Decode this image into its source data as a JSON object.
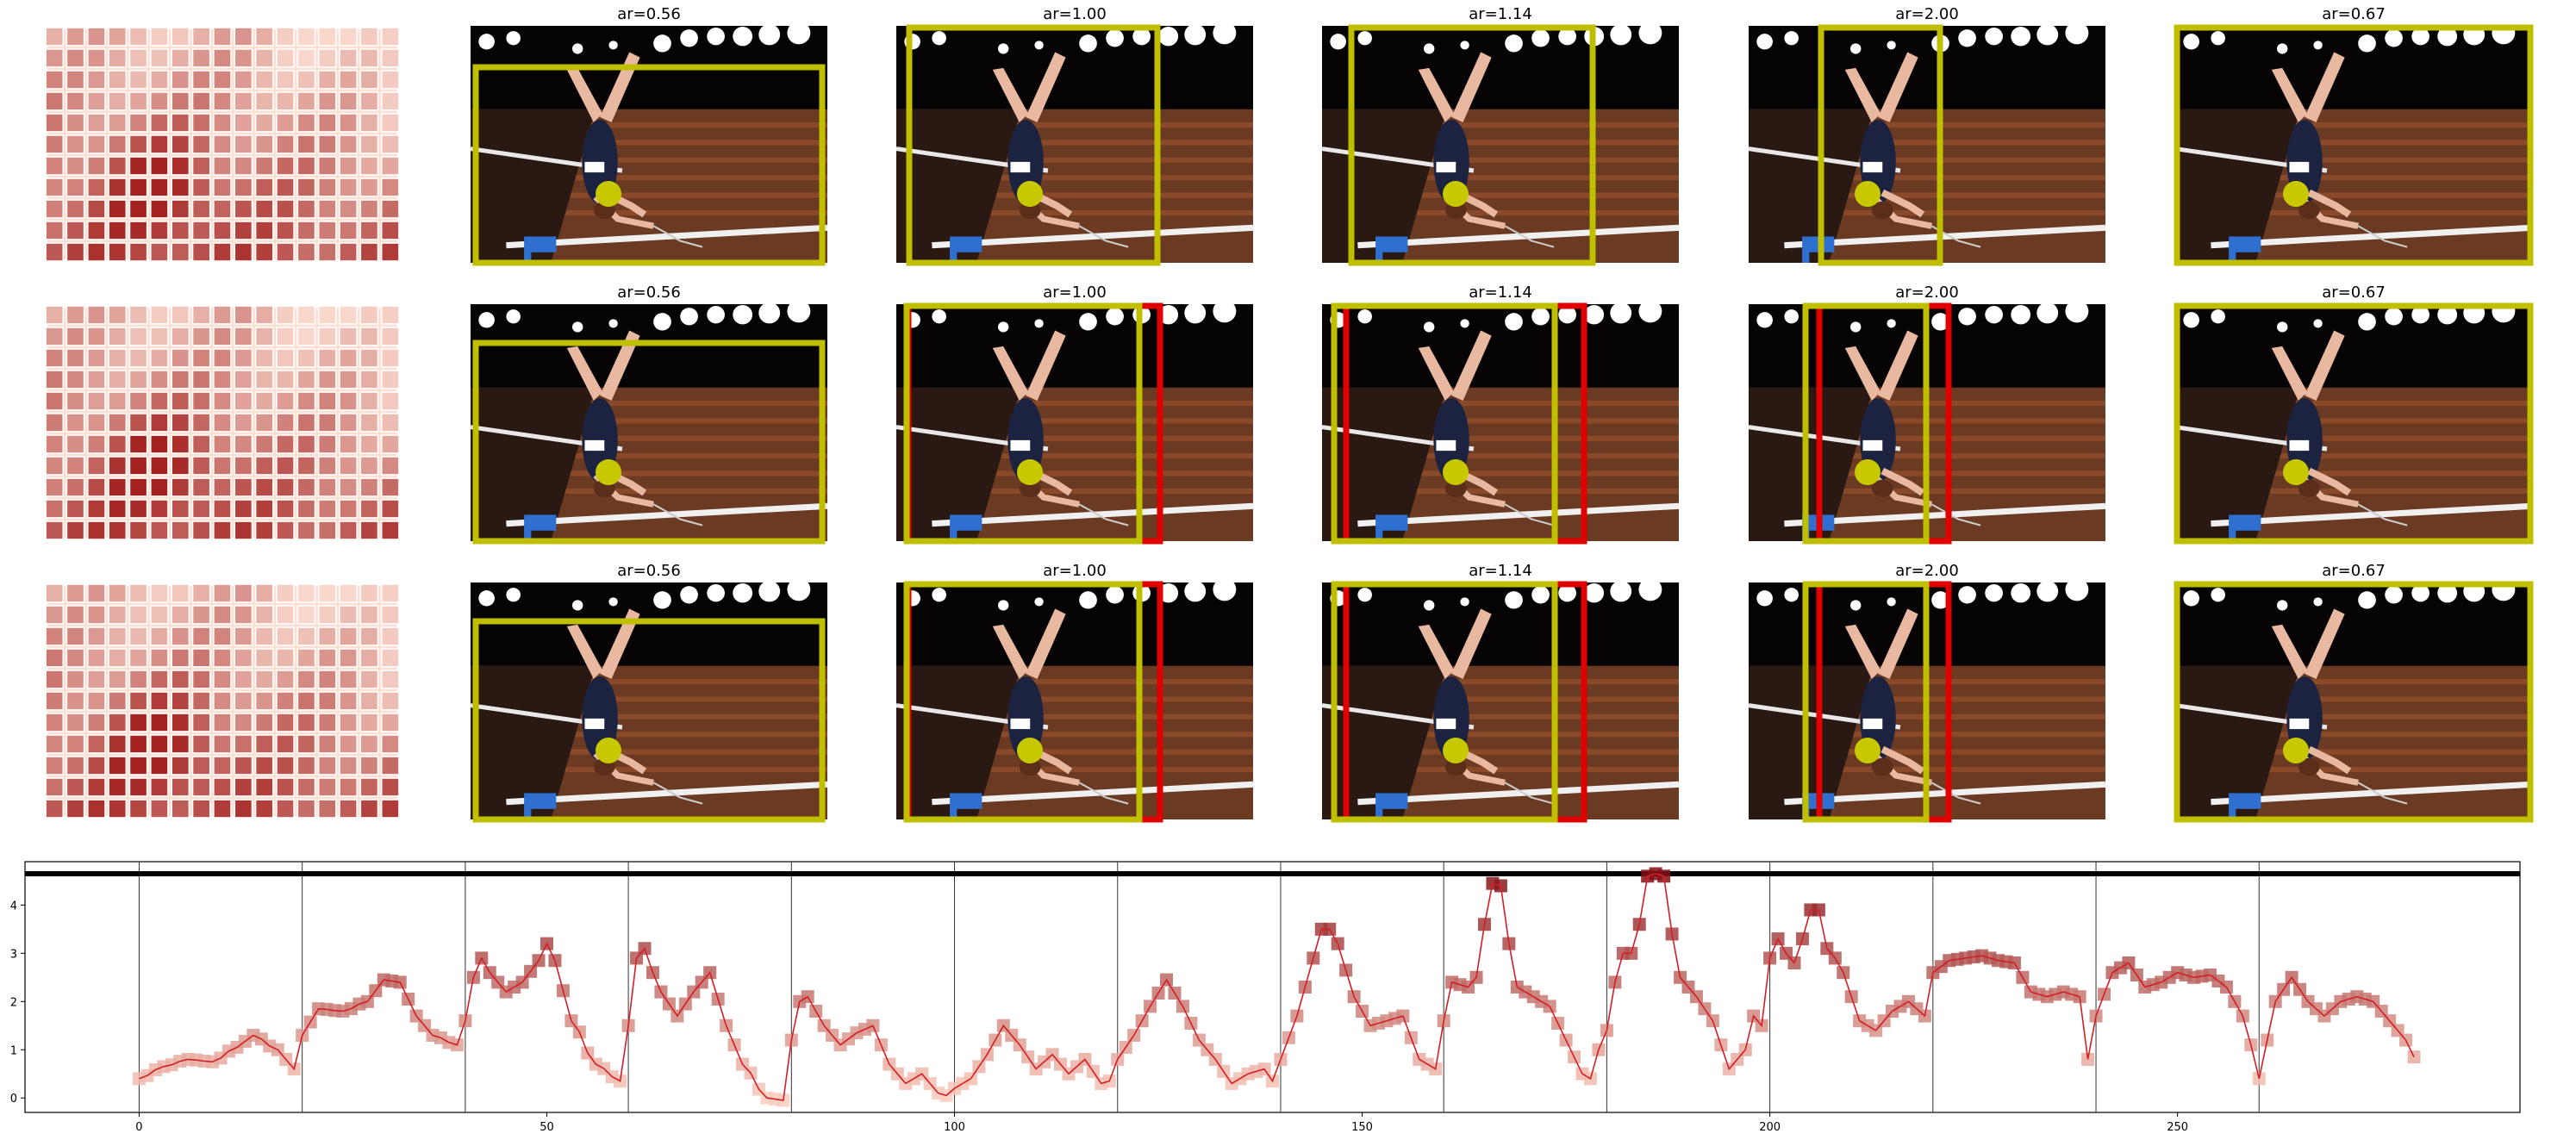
{
  "panels": {
    "rows": 3,
    "titles": [
      "ar=0.56",
      "ar=1.00",
      "ar=1.14",
      "ar=2.00",
      "ar=0.67"
    ],
    "box_color": "#bfbf00",
    "alt_box_color": "#e00000",
    "dot_color": "#c8c800"
  },
  "chart_data": {
    "type": "line",
    "title": "",
    "xlabel": "",
    "ylabel": "",
    "xlim": [
      -14,
      292
    ],
    "ylim": [
      -0.3,
      4.9
    ],
    "xticks": [
      0,
      50,
      100,
      150,
      200,
      250
    ],
    "yticks": [
      0,
      1,
      2,
      3,
      4
    ],
    "vlines": [
      0,
      20,
      40,
      60,
      80,
      100,
      120,
      140,
      160,
      180,
      200,
      220,
      240,
      260
    ],
    "hline": 4.65,
    "line_color": "#d11f26",
    "anchors": [
      [
        0,
        0.4
      ],
      [
        3,
        0.65
      ],
      [
        6,
        0.8
      ],
      [
        9,
        0.75
      ],
      [
        12,
        1.05
      ],
      [
        14,
        1.3
      ],
      [
        17,
        1.0
      ],
      [
        19,
        0.6
      ],
      [
        20,
        1.3
      ],
      [
        22,
        1.85
      ],
      [
        25,
        1.8
      ],
      [
        28,
        2.0
      ],
      [
        30,
        2.45
      ],
      [
        32,
        2.4
      ],
      [
        34,
        1.7
      ],
      [
        36,
        1.3
      ],
      [
        39,
        1.1
      ],
      [
        40,
        1.6
      ],
      [
        41,
        2.5
      ],
      [
        42,
        2.9
      ],
      [
        43,
        2.6
      ],
      [
        45,
        2.2
      ],
      [
        47,
        2.4
      ],
      [
        49,
        2.85
      ],
      [
        50,
        3.2
      ],
      [
        51,
        2.85
      ],
      [
        53,
        1.6
      ],
      [
        56,
        0.7
      ],
      [
        59,
        0.35
      ],
      [
        60,
        1.5
      ],
      [
        61,
        2.9
      ],
      [
        62,
        3.1
      ],
      [
        63,
        2.6
      ],
      [
        64,
        2.2
      ],
      [
        66,
        1.7
      ],
      [
        68,
        2.2
      ],
      [
        70,
        2.6
      ],
      [
        72,
        1.5
      ],
      [
        74,
        0.7
      ],
      [
        77,
        0.0
      ],
      [
        79,
        -0.05
      ],
      [
        80,
        1.2
      ],
      [
        81,
        2.0
      ],
      [
        82,
        2.1
      ],
      [
        84,
        1.5
      ],
      [
        86,
        1.1
      ],
      [
        88,
        1.35
      ],
      [
        90,
        1.5
      ],
      [
        92,
        0.7
      ],
      [
        94,
        0.3
      ],
      [
        96,
        0.5
      ],
      [
        98,
        0.1
      ],
      [
        99,
        0.05
      ],
      [
        100,
        0.2
      ],
      [
        102,
        0.4
      ],
      [
        104,
        0.9
      ],
      [
        106,
        1.5
      ],
      [
        108,
        1.1
      ],
      [
        110,
        0.6
      ],
      [
        112,
        0.9
      ],
      [
        114,
        0.5
      ],
      [
        116,
        0.8
      ],
      [
        118,
        0.3
      ],
      [
        119,
        0.35
      ],
      [
        120,
        0.8
      ],
      [
        122,
        1.3
      ],
      [
        124,
        1.9
      ],
      [
        126,
        2.45
      ],
      [
        128,
        1.9
      ],
      [
        130,
        1.2
      ],
      [
        132,
        0.8
      ],
      [
        134,
        0.3
      ],
      [
        136,
        0.5
      ],
      [
        138,
        0.6
      ],
      [
        139,
        0.35
      ],
      [
        140,
        0.8
      ],
      [
        142,
        1.7
      ],
      [
        144,
        2.9
      ],
      [
        145,
        3.5
      ],
      [
        146,
        3.5
      ],
      [
        147,
        3.2
      ],
      [
        149,
        2.1
      ],
      [
        151,
        1.5
      ],
      [
        153,
        1.6
      ],
      [
        155,
        1.7
      ],
      [
        157,
        0.8
      ],
      [
        159,
        0.6
      ],
      [
        160,
        1.6
      ],
      [
        161,
        2.4
      ],
      [
        163,
        2.3
      ],
      [
        164,
        2.5
      ],
      [
        165,
        3.6
      ],
      [
        166,
        4.45
      ],
      [
        167,
        4.4
      ],
      [
        168,
        3.2
      ],
      [
        169,
        2.3
      ],
      [
        171,
        2.1
      ],
      [
        173,
        1.9
      ],
      [
        175,
        1.2
      ],
      [
        177,
        0.5
      ],
      [
        178,
        0.4
      ],
      [
        179,
        1.0
      ],
      [
        180,
        1.4
      ],
      [
        181,
        2.4
      ],
      [
        182,
        3.0
      ],
      [
        183,
        3.0
      ],
      [
        184,
        3.6
      ],
      [
        185,
        4.6
      ],
      [
        186,
        4.65
      ],
      [
        187,
        4.6
      ],
      [
        188,
        3.4
      ],
      [
        189,
        2.5
      ],
      [
        191,
        2.1
      ],
      [
        193,
        1.6
      ],
      [
        195,
        0.6
      ],
      [
        197,
        1.0
      ],
      [
        198,
        1.7
      ],
      [
        199,
        1.5
      ],
      [
        200,
        2.9
      ],
      [
        201,
        3.3
      ],
      [
        202,
        3.0
      ],
      [
        203,
        2.8
      ],
      [
        204,
        3.3
      ],
      [
        205,
        3.9
      ],
      [
        206,
        3.9
      ],
      [
        207,
        3.1
      ],
      [
        208,
        2.9
      ],
      [
        209,
        2.6
      ],
      [
        211,
        1.6
      ],
      [
        213,
        1.4
      ],
      [
        215,
        1.8
      ],
      [
        217,
        2.0
      ],
      [
        219,
        1.7
      ],
      [
        220,
        2.6
      ],
      [
        222,
        2.85
      ],
      [
        224,
        2.9
      ],
      [
        226,
        2.95
      ],
      [
        228,
        2.85
      ],
      [
        230,
        2.8
      ],
      [
        232,
        2.2
      ],
      [
        234,
        2.1
      ],
      [
        236,
        2.2
      ],
      [
        238,
        2.1
      ],
      [
        239,
        0.8
      ],
      [
        240,
        1.7
      ],
      [
        242,
        2.6
      ],
      [
        244,
        2.8
      ],
      [
        246,
        2.3
      ],
      [
        248,
        2.4
      ],
      [
        250,
        2.6
      ],
      [
        252,
        2.5
      ],
      [
        254,
        2.55
      ],
      [
        256,
        2.3
      ],
      [
        258,
        1.7
      ],
      [
        259,
        1.1
      ],
      [
        260,
        0.4
      ],
      [
        262,
        2.0
      ],
      [
        264,
        2.5
      ],
      [
        266,
        2.0
      ],
      [
        268,
        1.7
      ],
      [
        270,
        2.0
      ],
      [
        272,
        2.1
      ],
      [
        274,
        2.0
      ],
      [
        276,
        1.6
      ],
      [
        278,
        1.2
      ],
      [
        279,
        0.85
      ]
    ]
  }
}
